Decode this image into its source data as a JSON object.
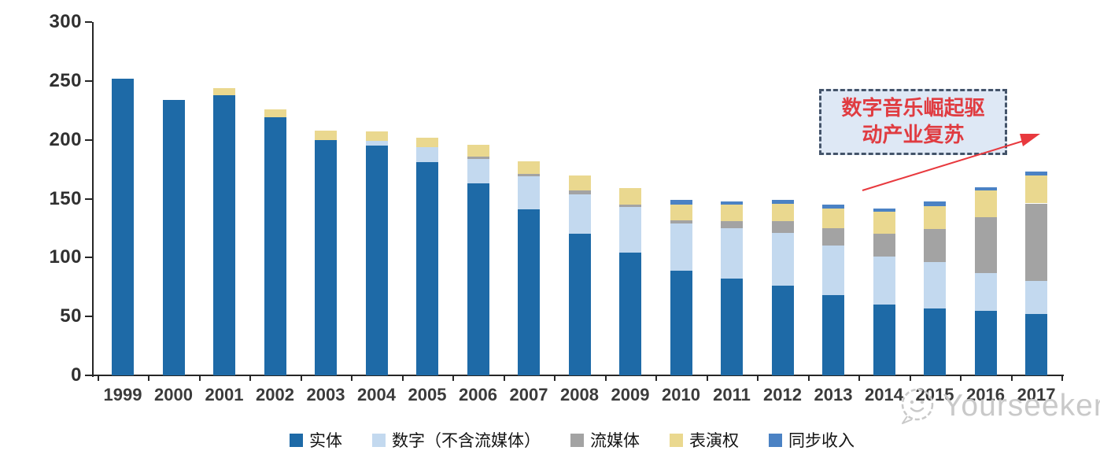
{
  "chart_data": {
    "type": "bar",
    "variant": "stacked",
    "title": "",
    "xlabel": "",
    "ylabel": "",
    "ylim": [
      0,
      300
    ],
    "yticks": [
      0,
      50,
      100,
      150,
      200,
      250,
      300
    ],
    "grid": false,
    "legend_position": "bottom",
    "categories": [
      "1999",
      "2000",
      "2001",
      "2002",
      "2003",
      "2004",
      "2005",
      "2006",
      "2007",
      "2008",
      "2009",
      "2010",
      "2011",
      "2012",
      "2013",
      "2014",
      "2015",
      "2016",
      "2017"
    ],
    "series": [
      {
        "name": "实体",
        "semantic": "physical",
        "color": "#1E6AA7",
        "values": [
          252,
          234,
          238,
          219,
          200,
          195,
          181,
          163,
          141,
          120,
          104,
          89,
          82,
          76,
          68,
          60,
          57,
          55,
          52
        ]
      },
      {
        "name": "数字（不含流媒体）",
        "semantic": "digital-excl-streaming",
        "color": "#C3D9EF",
        "values": [
          0,
          0,
          0,
          0,
          0,
          4,
          13,
          21,
          28,
          34,
          39,
          40,
          43,
          45,
          42,
          41,
          39,
          32,
          28
        ]
      },
      {
        "name": "流媒体",
        "semantic": "streaming",
        "color": "#A3A3A3",
        "values": [
          0,
          0,
          0,
          0,
          0,
          0,
          0,
          2,
          2,
          3,
          2,
          3,
          6,
          10,
          15,
          19,
          28,
          47,
          66
        ]
      },
      {
        "name": "表演权",
        "semantic": "performance-rights",
        "color": "#EAD88F",
        "values": [
          0,
          0,
          6,
          7,
          8,
          8,
          8,
          10,
          11,
          13,
          14,
          13,
          14,
          15,
          17,
          19,
          20,
          23,
          24
        ]
      },
      {
        "name": "同步收入",
        "semantic": "sync-revenue",
        "color": "#4B82C4",
        "values": [
          0,
          0,
          0,
          0,
          0,
          0,
          0,
          0,
          0,
          0,
          0,
          4,
          3,
          3,
          3,
          3,
          4,
          3,
          3
        ]
      }
    ],
    "totals": [
      252,
      234,
      244,
      226,
      208,
      207,
      202,
      196,
      182,
      170,
      159,
      149,
      148,
      149,
      145,
      142,
      148,
      160,
      173
    ]
  },
  "annotation": {
    "line1": "数字音乐崛起驱",
    "line2": "动产业复苏",
    "fill_color": "#DEE8F5",
    "border_color": "#44546A",
    "text_color": "#E03C41",
    "arrow_color": "#E8393E"
  },
  "watermark": {
    "text": "Yourseeker",
    "logo": "chat-smiley-icon",
    "color": "#C9C9C9"
  }
}
